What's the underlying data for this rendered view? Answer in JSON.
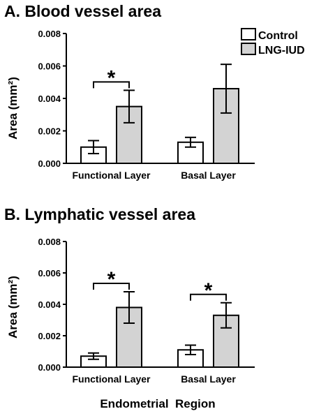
{
  "colors": {
    "control_fill": "#ffffff",
    "lng_fill": "#d3d3d3",
    "stroke": "#000000"
  },
  "legend": {
    "items": [
      "Control",
      "LNG-IUD"
    ],
    "placement": "top-right"
  },
  "x_title": "Endometrial  Region",
  "chart_data": [
    {
      "type": "bar",
      "title": "A. Blood vessel area",
      "ylabel": "Area (mm²)",
      "xlabel": "",
      "ylim": [
        0,
        0.008
      ],
      "yticks": [
        "0.000",
        "0.002",
        "0.004",
        "0.006",
        "0.008"
      ],
      "categories": [
        "Functional Layer",
        "Basal Layer"
      ],
      "series": [
        {
          "name": "Control",
          "values": [
            0.001,
            0.0013
          ],
          "errors": [
            0.0004,
            0.0003
          ]
        },
        {
          "name": "LNG-IUD",
          "values": [
            0.0035,
            0.0046
          ],
          "errors": [
            0.001,
            0.0015
          ]
        }
      ],
      "significance": [
        {
          "category": "Functional Layer",
          "label": "*"
        }
      ],
      "grid": false
    },
    {
      "type": "bar",
      "title": "B. Lymphatic vessel area",
      "ylabel": "Area (mm²)",
      "xlabel": "",
      "ylim": [
        0,
        0.008
      ],
      "yticks": [
        "0.000",
        "0.002",
        "0.004",
        "0.006",
        "0.008"
      ],
      "categories": [
        "Functional Layer",
        "Basal Layer"
      ],
      "series": [
        {
          "name": "Control",
          "values": [
            0.0007,
            0.0011
          ],
          "errors": [
            0.0002,
            0.0003
          ]
        },
        {
          "name": "LNG-IUD",
          "values": [
            0.0038,
            0.0033
          ],
          "errors": [
            0.001,
            0.0008
          ]
        }
      ],
      "significance": [
        {
          "category": "Functional Layer",
          "label": "*"
        },
        {
          "category": "Basal Layer",
          "label": "*"
        }
      ],
      "grid": false
    }
  ]
}
